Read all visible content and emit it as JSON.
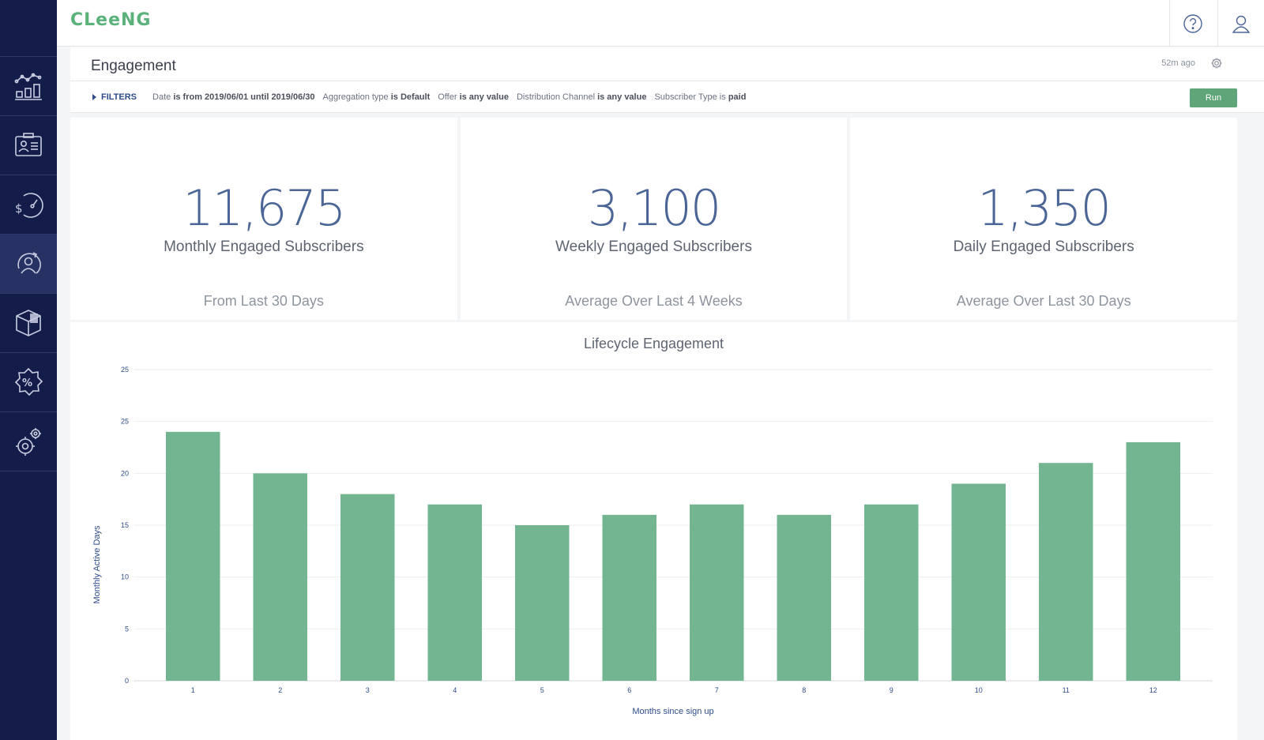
{
  "app": {
    "logo_text": "CLeeNG"
  },
  "sidebar": {
    "items": [
      {
        "icon": "analytics-chart-icon",
        "active": false
      },
      {
        "icon": "subscriber-card-icon",
        "active": false
      },
      {
        "icon": "revenue-speedometer-icon",
        "active": false
      },
      {
        "icon": "engagement-user-cycle-icon",
        "active": true
      },
      {
        "icon": "package-box-icon",
        "active": false
      },
      {
        "icon": "discount-percent-icon",
        "active": false
      },
      {
        "icon": "settings-gears-icon",
        "active": false
      }
    ]
  },
  "topbar": {
    "help_icon": "help-icon",
    "account_icon": "user-icon"
  },
  "header": {
    "title": "Engagement",
    "updated": "52m ago",
    "settings_icon": "gear-icon"
  },
  "filters": {
    "toggle_label": "FILTERS",
    "chips": [
      {
        "field": "Date",
        "op": "is from 2019/06/01 until 2019/06/30"
      },
      {
        "field": "Aggregation type",
        "op": "is Default"
      },
      {
        "field": "Offer",
        "op": "is any value"
      },
      {
        "field": "Distribution Channel",
        "op": "is any value"
      },
      {
        "field": "Subscriber Type is",
        "op": "paid"
      }
    ],
    "run_label": "Run"
  },
  "stats": [
    {
      "value": "11,675",
      "label": "Monthly Engaged Subscribers",
      "sub": "From Last 30 Days"
    },
    {
      "value": "3,100",
      "label": "Weekly Engaged Subscribers",
      "sub": "Average Over Last 4 Weeks"
    },
    {
      "value": "1,350",
      "label": "Daily Engaged Subscribers",
      "sub": "Average Over Last 30 Days"
    }
  ],
  "colors": {
    "bar": "#74b591",
    "sidebar": "#141c4a",
    "accent": "#5fa57a",
    "axis_text": "#2e4b8a"
  },
  "chart_data": {
    "type": "bar",
    "title": "Lifecycle Engagement",
    "xlabel": "Months since sign up",
    "ylabel": "Monthly Active Days",
    "categories": [
      "1",
      "2",
      "3",
      "4",
      "5",
      "6",
      "7",
      "8",
      "9",
      "10",
      "11",
      "12"
    ],
    "values": [
      24,
      20,
      18,
      17,
      15,
      16,
      17,
      16,
      17,
      19,
      21,
      23
    ],
    "yticks": [
      "0",
      "5",
      "10",
      "15",
      "20",
      "25",
      "25"
    ],
    "ylim": [
      0,
      30
    ],
    "grid": true,
    "legend": "none"
  }
}
